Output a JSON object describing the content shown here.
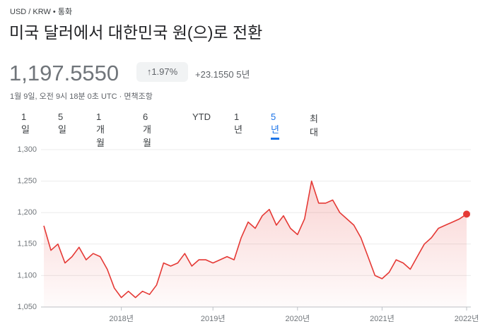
{
  "header": {
    "pair": "USD / KRW",
    "kind": "통화",
    "title": "미국 달러에서 대한민국 원(으)로 전환"
  },
  "quote": {
    "price": "1,197.5550",
    "change_percent": "↑1.97%",
    "change": "+23.1550",
    "period": "5년",
    "timestamp": "1월 9일, 오전 9시 18분 0초 UTC",
    "disclaimer": "면책조항"
  },
  "tabs": {
    "items": [
      "1일",
      "5일",
      "1개월",
      "6개월",
      "YTD",
      "1년",
      "5년",
      "최대"
    ],
    "selected": 6
  },
  "chart_data": {
    "type": "area-line",
    "color": "#e53935",
    "categories": [
      null,
      null,
      null,
      null,
      null,
      null,
      null,
      null,
      null,
      null,
      null,
      "2018년",
      null,
      null,
      null,
      null,
      null,
      null,
      null,
      null,
      null,
      null,
      null,
      null,
      "2019년",
      null,
      null,
      null,
      null,
      null,
      null,
      null,
      null,
      null,
      null,
      null,
      "2020년",
      null,
      null,
      null,
      null,
      null,
      null,
      null,
      null,
      null,
      null,
      null,
      "2021년",
      null,
      null,
      null,
      null,
      null,
      null,
      null,
      null,
      null,
      null,
      null,
      "2022년"
    ],
    "values": [
      1179,
      1140,
      1150,
      1120,
      1130,
      1145,
      1125,
      1135,
      1130,
      1110,
      1080,
      1065,
      1075,
      1065,
      1075,
      1070,
      1085,
      1120,
      1115,
      1120,
      1135,
      1115,
      1125,
      1125,
      1120,
      1125,
      1130,
      1125,
      1160,
      1185,
      1175,
      1195,
      1205,
      1180,
      1195,
      1175,
      1165,
      1190,
      1250,
      1215,
      1215,
      1220,
      1200,
      1190,
      1180,
      1160,
      1130,
      1100,
      1095,
      1105,
      1125,
      1120,
      1110,
      1130,
      1150,
      1160,
      1175,
      1180,
      1185,
      1190,
      1197.555
    ],
    "ylim": [
      1050,
      1300
    ],
    "yticks": [
      {
        "value": 1050,
        "label": "1,050"
      },
      {
        "value": 1100,
        "label": "1,100"
      },
      {
        "value": 1150,
        "label": "1,150"
      },
      {
        "value": 1200,
        "label": "1,200"
      },
      {
        "value": 1250,
        "label": "1,250"
      },
      {
        "value": 1300,
        "label": "1,300"
      }
    ],
    "grid": true
  }
}
